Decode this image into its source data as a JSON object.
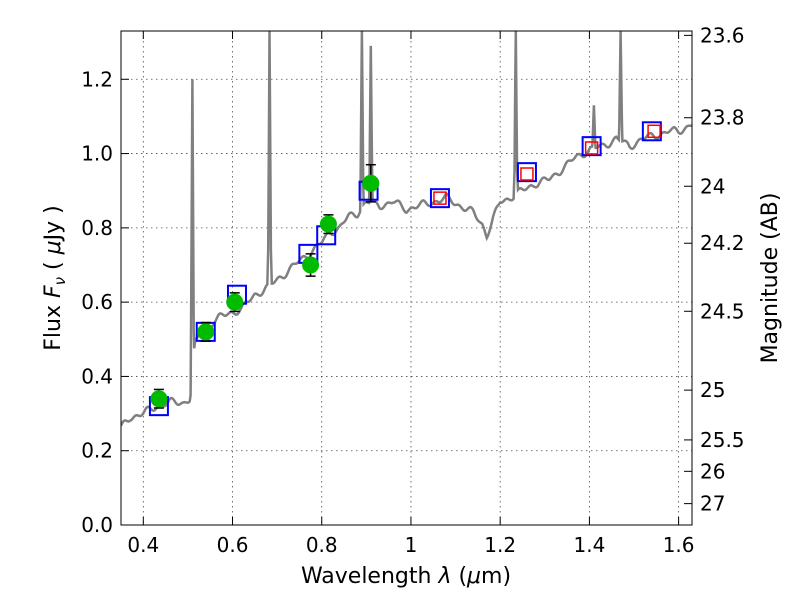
{
  "chart_data": {
    "type": "scatter",
    "xlabel": {
      "prefix": "Wavelength  ",
      "symbol": "λ",
      "suffix": " (",
      "mu": "μ",
      "unit": "m)"
    },
    "ylabel": {
      "prefix": "Flux  ",
      "symbol": "F",
      "sub": "ν",
      "suffix": "  ( ",
      "mu": "μ",
      "unit": "Jy )"
    },
    "y2label": "Magnitude (AB)",
    "xlim": [
      0.35,
      1.63
    ],
    "ylim": [
      0.0,
      1.33
    ],
    "grid": true,
    "x_ticks": [
      {
        "value": 0.4,
        "label": "0.4"
      },
      {
        "value": 0.6,
        "label": "0.6"
      },
      {
        "value": 0.8,
        "label": "0.8"
      },
      {
        "value": 1.0,
        "label": "1"
      },
      {
        "value": 1.2,
        "label": "1.2"
      },
      {
        "value": 1.4,
        "label": "1.4"
      },
      {
        "value": 1.6,
        "label": "1.6"
      }
    ],
    "y_ticks": [
      {
        "value": 0.0,
        "label": "0.0"
      },
      {
        "value": 0.2,
        "label": "0.2"
      },
      {
        "value": 0.4,
        "label": "0.4"
      },
      {
        "value": 0.6,
        "label": "0.6"
      },
      {
        "value": 0.8,
        "label": "0.8"
      },
      {
        "value": 1.0,
        "label": "1.0"
      },
      {
        "value": 1.2,
        "label": "1.2"
      }
    ],
    "y2_ticks": [
      {
        "value": 23.6,
        "label": "23.6"
      },
      {
        "value": 23.8,
        "label": "23.8"
      },
      {
        "value": 24.0,
        "label": "24"
      },
      {
        "value": 24.2,
        "label": "24.2"
      },
      {
        "value": 24.5,
        "label": "24.5"
      },
      {
        "value": 25.0,
        "label": "25"
      },
      {
        "value": 25.5,
        "label": "25.5"
      },
      {
        "value": 26.0,
        "label": "26"
      },
      {
        "value": 27.0,
        "label": "27"
      }
    ],
    "spectrum": {
      "color": "#808080",
      "continuum": [
        [
          0.35,
          0.26
        ],
        [
          0.37,
          0.29
        ],
        [
          0.4,
          0.3
        ],
        [
          0.43,
          0.32
        ],
        [
          0.46,
          0.33
        ],
        [
          0.49,
          0.33
        ],
        [
          0.505,
          0.34
        ],
        [
          0.515,
          0.48
        ],
        [
          0.53,
          0.52
        ],
        [
          0.56,
          0.55
        ],
        [
          0.59,
          0.57
        ],
        [
          0.62,
          0.58
        ],
        [
          0.65,
          0.62
        ],
        [
          0.68,
          0.64
        ],
        [
          0.7,
          0.66
        ],
        [
          0.72,
          0.68
        ],
        [
          0.74,
          0.7
        ],
        [
          0.76,
          0.72
        ],
        [
          0.78,
          0.74
        ],
        [
          0.8,
          0.76
        ],
        [
          0.82,
          0.79
        ],
        [
          0.84,
          0.8
        ],
        [
          0.86,
          0.83
        ],
        [
          0.88,
          0.84
        ],
        [
          0.9,
          0.87
        ],
        [
          0.93,
          0.86
        ],
        [
          0.96,
          0.87
        ],
        [
          0.99,
          0.85
        ],
        [
          1.02,
          0.86
        ],
        [
          1.05,
          0.87
        ],
        [
          1.08,
          0.88
        ],
        [
          1.11,
          0.86
        ],
        [
          1.14,
          0.84
        ],
        [
          1.16,
          0.81
        ],
        [
          1.17,
          0.78
        ],
        [
          1.18,
          0.81
        ],
        [
          1.2,
          0.87
        ],
        [
          1.22,
          0.88
        ],
        [
          1.25,
          0.9
        ],
        [
          1.28,
          0.92
        ],
        [
          1.31,
          0.93
        ],
        [
          1.34,
          0.96
        ],
        [
          1.37,
          0.99
        ],
        [
          1.4,
          1.01
        ],
        [
          1.43,
          1.02
        ],
        [
          1.46,
          1.04
        ],
        [
          1.49,
          1.02
        ],
        [
          1.52,
          1.04
        ],
        [
          1.55,
          1.05
        ],
        [
          1.58,
          1.06
        ],
        [
          1.6,
          1.06
        ],
        [
          1.63,
          1.08
        ]
      ],
      "lines": [
        {
          "x": 0.51,
          "peak": 1.2
        },
        {
          "x": 0.683,
          "peak": 1.33
        },
        {
          "x": 0.89,
          "peak": 1.33
        },
        {
          "x": 0.91,
          "peak": 1.29
        },
        {
          "x": 1.235,
          "peak": 1.33
        },
        {
          "x": 1.41,
          "peak": 1.13
        },
        {
          "x": 1.47,
          "peak": 1.33
        }
      ]
    },
    "series": [
      {
        "kind": "blue-squares",
        "color": "#0000ff",
        "points": [
          {
            "x": 0.435,
            "y": 0.32
          },
          {
            "x": 0.54,
            "y": 0.52
          },
          {
            "x": 0.61,
            "y": 0.62
          },
          {
            "x": 0.77,
            "y": 0.73
          },
          {
            "x": 0.81,
            "y": 0.78
          },
          {
            "x": 0.905,
            "y": 0.9
          },
          {
            "x": 1.065,
            "y": 0.88
          },
          {
            "x": 1.26,
            "y": 0.95
          },
          {
            "x": 1.405,
            "y": 1.02
          },
          {
            "x": 1.54,
            "y": 1.06
          }
        ]
      },
      {
        "kind": "red-squares",
        "color": "#ff0000",
        "points": [
          {
            "x": 1.065,
            "y": 0.88
          },
          {
            "x": 1.26,
            "y": 0.945
          },
          {
            "x": 1.405,
            "y": 1.015
          },
          {
            "x": 1.545,
            "y": 1.06
          }
        ]
      },
      {
        "kind": "green-circles-with-errors",
        "color": "#00bb00",
        "points": [
          {
            "x": 0.435,
            "y": 0.34,
            "err": 0.025
          },
          {
            "x": 0.54,
            "y": 0.52,
            "err": 0.025
          },
          {
            "x": 0.605,
            "y": 0.6,
            "err": 0.025
          },
          {
            "x": 0.775,
            "y": 0.7,
            "err": 0.03
          },
          {
            "x": 0.815,
            "y": 0.81,
            "err": 0.025
          },
          {
            "x": 0.91,
            "y": 0.92,
            "err": 0.05
          }
        ]
      }
    ]
  }
}
